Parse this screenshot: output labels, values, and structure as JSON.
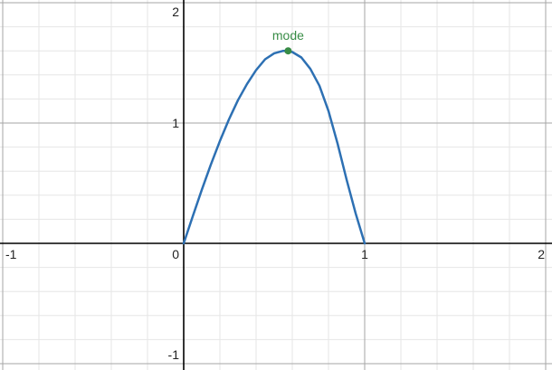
{
  "chart_data": {
    "type": "line",
    "title": "",
    "xlabel": "",
    "ylabel": "",
    "xlim": [
      -1,
      2
    ],
    "ylim": [
      -1,
      2
    ],
    "grid": true,
    "x_ticks": [
      {
        "value": -1,
        "label": "-1"
      },
      {
        "value": 0,
        "label": "0"
      },
      {
        "value": 1,
        "label": "1"
      },
      {
        "value": 2,
        "label": "2"
      }
    ],
    "y_ticks": [
      {
        "value": -1,
        "label": "-1"
      },
      {
        "value": 1,
        "label": "1"
      },
      {
        "value": 2,
        "label": "2"
      }
    ],
    "series": [
      {
        "color": "#2d70b3",
        "x": [
          0,
          0.05,
          0.1,
          0.15,
          0.2,
          0.25,
          0.3,
          0.35,
          0.4,
          0.45,
          0.5,
          0.55,
          0.577,
          0.6,
          0.65,
          0.7,
          0.75,
          0.8,
          0.85,
          0.9,
          0.95,
          1.0
        ],
        "y": [
          0,
          0.225,
          0.445,
          0.655,
          0.85,
          1.03,
          1.19,
          1.325,
          1.44,
          1.53,
          1.58,
          1.6,
          1.6,
          1.59,
          1.545,
          1.45,
          1.31,
          1.1,
          0.83,
          0.53,
          0.25,
          0
        ]
      }
    ],
    "annotations": [
      {
        "label": "mode",
        "x": 0.577,
        "y": 1.6,
        "color": "#388c46"
      }
    ]
  }
}
